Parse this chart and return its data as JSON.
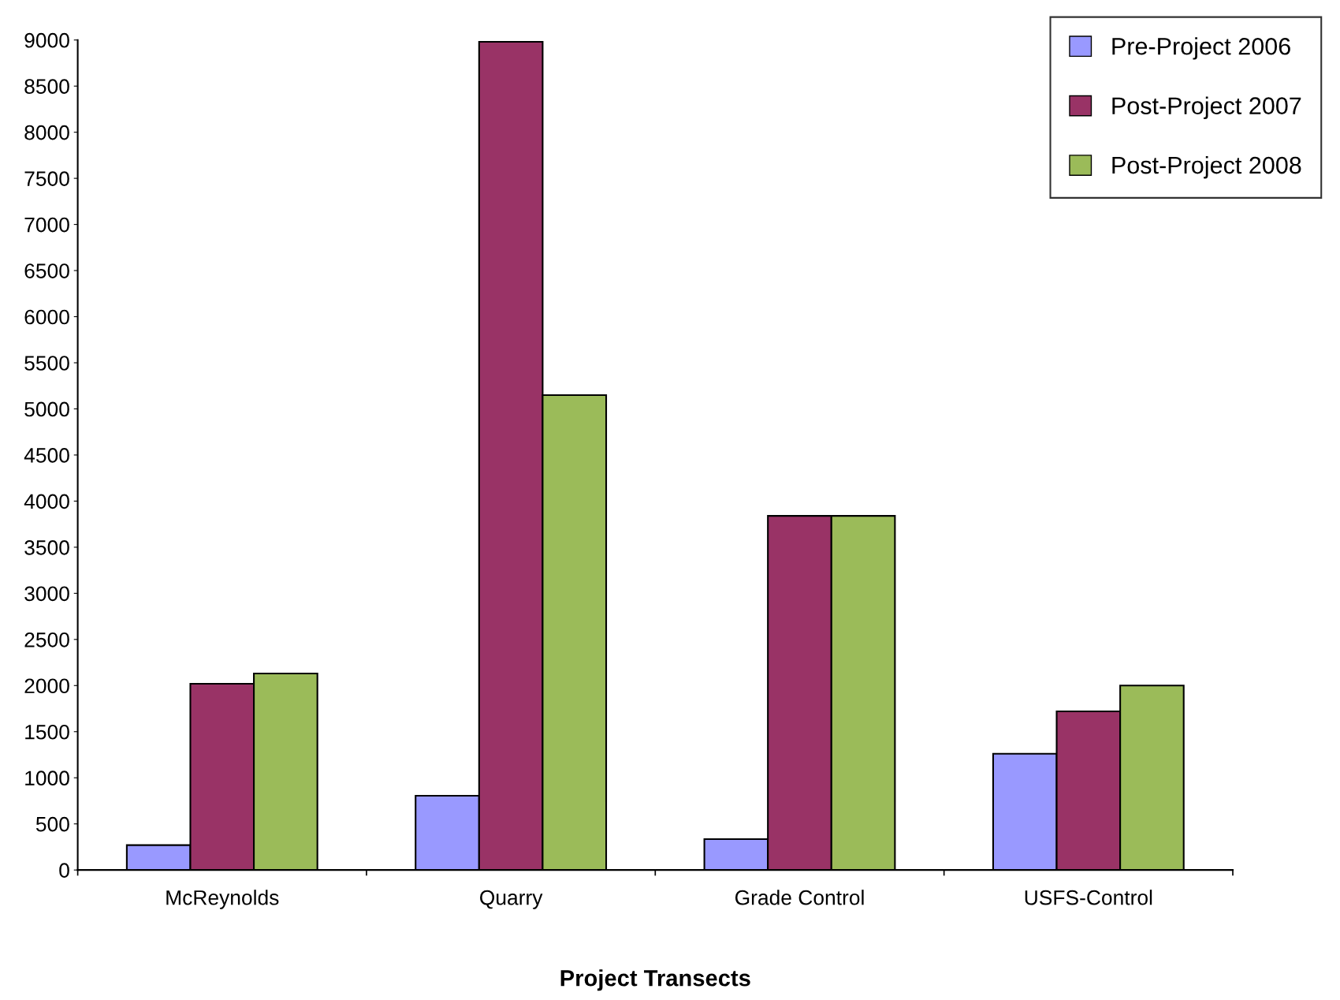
{
  "chart_data": {
    "type": "bar",
    "xlabel": "Project Transects",
    "categories": [
      "McReynolds",
      "Quarry",
      "Grade Control",
      "USFS-Control"
    ],
    "series": [
      {
        "name": "Pre-Project 2006",
        "color": "#9999ff",
        "values": [
          270,
          805,
          335,
          1260
        ]
      },
      {
        "name": "Post-Project 2007",
        "color": "#993366",
        "values": [
          2020,
          8980,
          3840,
          1720
        ]
      },
      {
        "name": "Post-Project 2008",
        "color": "#9bbb59",
        "values": [
          2130,
          5150,
          3840,
          2000
        ]
      }
    ],
    "ylim": [
      0,
      9000
    ],
    "yticks": [
      0,
      500,
      1000,
      1500,
      2000,
      2500,
      3000,
      3500,
      4000,
      4500,
      5000,
      5500,
      6000,
      6500,
      7000,
      7500,
      8000,
      8500,
      9000
    ],
    "grid": false,
    "legend": "top right"
  }
}
